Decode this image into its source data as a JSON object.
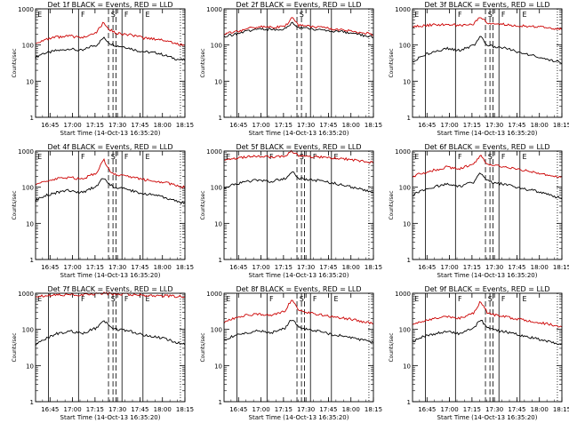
{
  "chart_data": [
    {
      "type": "line",
      "title": "Det 1f BLACK = Events, RED = LLD",
      "xlabel": "Start Time (14-Oct-13 16:35:20)",
      "ylabel": "Counts/sec",
      "yscale": "log",
      "ylim": [
        1,
        1000
      ],
      "xlim": [
        "16:35:20",
        "18:15:00"
      ],
      "xticks": [
        "16:45",
        "17:00",
        "17:15",
        "17:30",
        "17:45",
        "18:00",
        "18:15"
      ],
      "yticks": [
        "1",
        "10",
        "100",
        "1000"
      ],
      "series": [
        {
          "name": "Events",
          "color": "#000000",
          "values": [
            45,
            58,
            62,
            70,
            72,
            80,
            72,
            70,
            90,
            100,
            160,
            110,
            95,
            90,
            80,
            70,
            65,
            62,
            60,
            52,
            45,
            40,
            38
          ]
        },
        {
          "name": "LLD",
          "color": "#cc0000",
          "values": [
            110,
            135,
            145,
            165,
            165,
            180,
            165,
            160,
            200,
            230,
            420,
            260,
            210,
            200,
            190,
            170,
            155,
            150,
            145,
            135,
            120,
            105,
            100
          ]
        }
      ],
      "markers": {
        "solid": [
          "16:44",
          "17:04",
          "17:33",
          "17:47"
        ],
        "dashed": [
          "17:24",
          "17:27",
          "17:29"
        ],
        "dotted": [
          "18:12"
        ]
      },
      "region_labels": [
        {
          "x": "16:36",
          "text": "E"
        },
        {
          "x": "17:05",
          "text": "F"
        },
        {
          "x": "17:25",
          "text": "S"
        },
        {
          "x": "17:34",
          "text": "F"
        },
        {
          "x": "17:48",
          "text": "E"
        }
      ]
    },
    {
      "type": "line",
      "title": "Det 2f BLACK = Events, RED = LLD",
      "xlabel": "Start Time (14-Oct-13 16:35:20)",
      "ylabel": "Counts/sec",
      "yscale": "log",
      "ylim": [
        1,
        1000
      ],
      "xlim": [
        "16:35:20",
        "18:15:00"
      ],
      "xticks": [
        "16:45",
        "17:00",
        "17:15",
        "17:30",
        "17:45",
        "18:00",
        "18:15"
      ],
      "yticks": [
        "1",
        "10",
        "100",
        "1000"
      ],
      "series": [
        {
          "name": "Events",
          "color": "#000000",
          "values": [
            170,
            190,
            205,
            230,
            260,
            275,
            275,
            270,
            275,
            280,
            420,
            300,
            290,
            275,
            270,
            255,
            245,
            235,
            220,
            210,
            190,
            180,
            170
          ]
        },
        {
          "name": "LLD",
          "color": "#cc0000",
          "values": [
            200,
            220,
            240,
            270,
            300,
            320,
            320,
            310,
            320,
            330,
            560,
            350,
            340,
            320,
            310,
            290,
            280,
            270,
            255,
            240,
            220,
            210,
            195
          ]
        }
      ],
      "markers": {
        "solid": [
          "16:44",
          "17:04",
          "17:33",
          "17:47"
        ],
        "dashed": [
          "17:24",
          "17:27"
        ],
        "dotted": [
          "18:12"
        ]
      },
      "region_labels": [
        {
          "x": "17:25",
          "text": "S"
        }
      ]
    },
    {
      "type": "line",
      "title": "Det 3f BLACK = Events, RED = LLD",
      "xlabel": "Start Time (14-Oct-13 16:35:20)",
      "ylabel": "Counts/sec",
      "yscale": "log",
      "ylim": [
        1,
        1000
      ],
      "xlim": [
        "16:35:20",
        "18:15:00"
      ],
      "xticks": [
        "16:45",
        "17:00",
        "17:15",
        "17:30",
        "17:45",
        "18:00",
        "18:15"
      ],
      "yticks": [
        "1",
        "10",
        "100",
        "1000"
      ],
      "series": [
        {
          "name": "Events",
          "color": "#000000",
          "values": [
            35,
            45,
            55,
            65,
            70,
            80,
            75,
            70,
            85,
            95,
            170,
            100,
            90,
            85,
            80,
            70,
            60,
            55,
            50,
            45,
            40,
            35,
            33
          ]
        },
        {
          "name": "LLD",
          "color": "#cc0000",
          "values": [
            320,
            340,
            350,
            365,
            360,
            370,
            360,
            350,
            370,
            380,
            620,
            400,
            380,
            375,
            365,
            350,
            340,
            330,
            320,
            310,
            290,
            280,
            270
          ]
        }
      ],
      "markers": {
        "solid": [
          "16:44",
          "17:04",
          "17:33",
          "17:47"
        ],
        "dashed": [
          "17:24",
          "17:27",
          "17:29"
        ],
        "dotted": [
          "18:12"
        ]
      },
      "region_labels": [
        {
          "x": "16:36",
          "text": "E"
        },
        {
          "x": "17:05",
          "text": "F"
        },
        {
          "x": "17:25",
          "text": "S"
        },
        {
          "x": "17:34",
          "text": "F"
        },
        {
          "x": "17:48",
          "text": "E"
        }
      ]
    },
    {
      "type": "line",
      "title": "Det 4f BLACK = Events, RED = LLD",
      "xlabel": "Start Time (14-Oct-13 16:35:20)",
      "ylabel": "Counts/sec",
      "yscale": "log",
      "ylim": [
        1,
        1000
      ],
      "xlim": [
        "16:35:20",
        "18:15:00"
      ],
      "xticks": [
        "16:45",
        "17:00",
        "17:15",
        "17:30",
        "17:45",
        "18:00",
        "18:15"
      ],
      "yticks": [
        "1",
        "10",
        "100",
        "1000"
      ],
      "series": [
        {
          "name": "Events",
          "color": "#000000",
          "values": [
            42,
            55,
            62,
            70,
            75,
            82,
            75,
            72,
            90,
            105,
            190,
            115,
            95,
            90,
            82,
            72,
            66,
            62,
            58,
            52,
            45,
            40,
            36
          ]
        },
        {
          "name": "LLD",
          "color": "#cc0000",
          "values": [
            115,
            140,
            150,
            170,
            175,
            190,
            175,
            170,
            210,
            240,
            600,
            270,
            220,
            210,
            195,
            175,
            160,
            155,
            145,
            135,
            120,
            110,
            100
          ]
        }
      ],
      "markers": {
        "solid": [
          "16:44",
          "17:04",
          "17:33",
          "17:47"
        ],
        "dashed": [
          "17:24",
          "17:27",
          "17:29"
        ],
        "dotted": [
          "18:12"
        ]
      },
      "region_labels": [
        {
          "x": "16:36",
          "text": "E"
        },
        {
          "x": "17:05",
          "text": "F"
        },
        {
          "x": "17:25",
          "text": "S"
        },
        {
          "x": "17:34",
          "text": "F"
        },
        {
          "x": "17:48",
          "text": "E"
        }
      ]
    },
    {
      "type": "line",
      "title": "Det 5f BLACK = Events, RED = LLD",
      "xlabel": "Start Time (14-Oct-13 16:35:20)",
      "ylabel": "Counts/sec",
      "yscale": "log",
      "ylim": [
        1,
        1000
      ],
      "xlim": [
        "16:35:20",
        "18:15:00"
      ],
      "xticks": [
        "16:45",
        "17:00",
        "17:15",
        "17:30",
        "17:45",
        "18:00",
        "18:15"
      ],
      "yticks": [
        "1",
        "10",
        "100",
        "1000"
      ],
      "series": [
        {
          "name": "Events",
          "color": "#000000",
          "values": [
            90,
            110,
            125,
            140,
            150,
            160,
            150,
            145,
            160,
            170,
            280,
            180,
            165,
            160,
            150,
            140,
            130,
            120,
            110,
            100,
            90,
            80,
            75
          ]
        },
        {
          "name": "LLD",
          "color": "#cc0000",
          "values": [
            550,
            600,
            640,
            680,
            700,
            720,
            700,
            690,
            720,
            740,
            1000,
            760,
            720,
            700,
            690,
            670,
            640,
            620,
            600,
            570,
            530,
            500,
            480
          ]
        }
      ],
      "markers": {
        "solid": [
          "16:44",
          "17:04",
          "17:33",
          "17:47"
        ],
        "dashed": [
          "17:24",
          "17:27",
          "17:29"
        ],
        "dotted": [
          "18:12"
        ]
      },
      "region_labels": [
        {
          "x": "16:36",
          "text": "E"
        },
        {
          "x": "17:05",
          "text": "F"
        },
        {
          "x": "17:25",
          "text": "S"
        },
        {
          "x": "17:34",
          "text": "F"
        },
        {
          "x": "17:48",
          "text": "E"
        }
      ]
    },
    {
      "type": "line",
      "title": "Det 6f BLACK = Events, RED = LLD",
      "xlabel": "Start Time (14-Oct-13 16:35:20)",
      "ylabel": "Counts/sec",
      "yscale": "log",
      "ylim": [
        1,
        1000
      ],
      "xlim": [
        "16:35:20",
        "18:15:00"
      ],
      "xticks": [
        "16:45",
        "17:00",
        "17:15",
        "17:30",
        "17:45",
        "18:00",
        "18:15"
      ],
      "yticks": [
        "1",
        "10",
        "100",
        "1000"
      ],
      "series": [
        {
          "name": "Events",
          "color": "#000000",
          "values": [
            60,
            75,
            85,
            100,
            110,
            120,
            110,
            105,
            125,
            140,
            260,
            150,
            130,
            125,
            115,
            100,
            92,
            85,
            80,
            72,
            62,
            55,
            50
          ]
        },
        {
          "name": "LLD",
          "color": "#cc0000",
          "values": [
            200,
            230,
            250,
            290,
            320,
            360,
            340,
            330,
            380,
            420,
            800,
            450,
            400,
            380,
            360,
            330,
            300,
            280,
            260,
            240,
            215,
            200,
            185
          ]
        }
      ],
      "markers": {
        "solid": [
          "16:44",
          "17:04",
          "17:33",
          "17:47"
        ],
        "dashed": [
          "17:24",
          "17:27",
          "17:29"
        ],
        "dotted": [
          "18:12"
        ]
      },
      "region_labels": [
        {
          "x": "16:36",
          "text": "E"
        },
        {
          "x": "17:05",
          "text": "F"
        },
        {
          "x": "17:25",
          "text": "S"
        },
        {
          "x": "17:34",
          "text": "F"
        },
        {
          "x": "17:48",
          "text": "E"
        }
      ]
    },
    {
      "type": "line",
      "title": "Det 7f BLACK = Events, RED = LLD",
      "xlabel": "Start Time (14-Oct-13 16:35:20)",
      "ylabel": "Counts/sec",
      "yscale": "log",
      "ylim": [
        1,
        1000
      ],
      "xlim": [
        "16:35:20",
        "18:15:00"
      ],
      "xticks": [
        "16:45",
        "17:00",
        "17:15",
        "17:30",
        "17:45",
        "18:00",
        "18:15"
      ],
      "yticks": [
        "1",
        "10",
        "100",
        "1000"
      ],
      "series": [
        {
          "name": "Events",
          "color": "#000000",
          "values": [
            38,
            50,
            60,
            75,
            80,
            90,
            82,
            78,
            95,
            110,
            180,
            120,
            100,
            95,
            88,
            78,
            70,
            65,
            60,
            55,
            48,
            42,
            38
          ]
        },
        {
          "name": "LLD",
          "color": "#cc0000",
          "values": [
            820,
            850,
            870,
            900,
            910,
            930,
            910,
            900,
            930,
            950,
            1000,
            960,
            940,
            930,
            920,
            900,
            880,
            870,
            860,
            850,
            830,
            820,
            810
          ]
        }
      ],
      "markers": {
        "solid": [
          "16:44",
          "17:04",
          "17:33",
          "17:47"
        ],
        "dashed": [
          "17:24",
          "17:27",
          "17:29"
        ],
        "dotted": [
          "18:12"
        ]
      },
      "region_labels": [
        {
          "x": "16:36",
          "text": "E"
        },
        {
          "x": "17:05",
          "text": "F"
        },
        {
          "x": "17:25",
          "text": "S"
        },
        {
          "x": "17:34",
          "text": "F"
        },
        {
          "x": "17:48",
          "text": "E"
        }
      ]
    },
    {
      "type": "line",
      "title": "Det 8f BLACK = Events, RED = LLD",
      "xlabel": "Start Time (14-Oct-13 16:35:20)",
      "ylabel": "Counts/sec",
      "yscale": "log",
      "ylim": [
        1,
        1000
      ],
      "xlim": [
        "16:35:20",
        "18:15:00"
      ],
      "xticks": [
        "16:45",
        "17:00",
        "17:15",
        "17:30",
        "17:45",
        "18:00",
        "18:15"
      ],
      "yticks": [
        "1",
        "10",
        "100",
        "1000"
      ],
      "series": [
        {
          "name": "Events",
          "color": "#000000",
          "values": [
            50,
            62,
            70,
            80,
            85,
            92,
            85,
            80,
            95,
            110,
            200,
            115,
            100,
            95,
            88,
            80,
            72,
            68,
            64,
            58,
            52,
            48,
            45
          ]
        },
        {
          "name": "LLD",
          "color": "#cc0000",
          "values": [
            160,
            190,
            210,
            240,
            250,
            270,
            255,
            245,
            280,
            320,
            700,
            340,
            290,
            275,
            260,
            240,
            220,
            210,
            200,
            185,
            170,
            160,
            150
          ]
        }
      ],
      "markers": {
        "solid": [
          "16:44",
          "17:04",
          "17:33",
          "17:47"
        ],
        "dashed": [
          "17:24",
          "17:27",
          "17:29"
        ],
        "dotted": [
          "18:12"
        ]
      },
      "region_labels": [
        {
          "x": "16:36",
          "text": "E"
        },
        {
          "x": "17:05",
          "text": "F"
        },
        {
          "x": "17:25",
          "text": "S"
        },
        {
          "x": "17:34",
          "text": "F"
        },
        {
          "x": "17:48",
          "text": "E"
        }
      ]
    },
    {
      "type": "line",
      "title": "Det 9f BLACK = Events, RED = LLD",
      "xlabel": "Start Time (14-Oct-13 16:35:20)",
      "ylabel": "Counts/sec",
      "yscale": "log",
      "ylim": [
        1,
        1000
      ],
      "xlim": [
        "16:35:20",
        "18:15:00"
      ],
      "xticks": [
        "16:45",
        "17:00",
        "17:15",
        "17:30",
        "17:45",
        "18:00",
        "18:15"
      ],
      "yticks": [
        "1",
        "10",
        "100",
        "1000"
      ],
      "series": [
        {
          "name": "Events",
          "color": "#000000",
          "values": [
            45,
            58,
            66,
            75,
            80,
            88,
            80,
            76,
            92,
            105,
            190,
            110,
            95,
            90,
            84,
            75,
            68,
            62,
            58,
            52,
            46,
            42,
            38
          ]
        },
        {
          "name": "LLD",
          "color": "#cc0000",
          "values": [
            130,
            160,
            175,
            200,
            210,
            230,
            215,
            205,
            240,
            280,
            600,
            300,
            250,
            235,
            220,
            200,
            185,
            175,
            165,
            150,
            140,
            130,
            120
          ]
        }
      ],
      "markers": {
        "solid": [
          "16:44",
          "17:04",
          "17:33",
          "17:47"
        ],
        "dashed": [
          "17:24",
          "17:27",
          "17:29"
        ],
        "dotted": [
          "18:12"
        ]
      },
      "region_labels": [
        {
          "x": "16:36",
          "text": "E"
        },
        {
          "x": "17:05",
          "text": "F"
        },
        {
          "x": "17:25",
          "text": "S"
        },
        {
          "x": "17:34",
          "text": "F"
        },
        {
          "x": "17:48",
          "text": "E"
        }
      ]
    }
  ]
}
